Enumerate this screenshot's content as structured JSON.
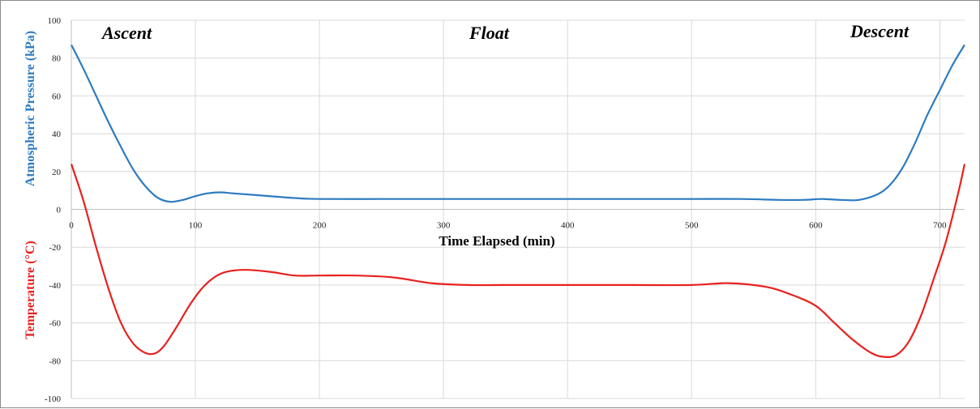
{
  "chart_data": {
    "type": "line",
    "xlabel": "Time Elapsed (min)",
    "ylabel_pressure": "Atmospheric Pressure (kPa)",
    "ylabel_temperature": "Temperature (°C)",
    "xlim": [
      0,
      720
    ],
    "ylim": [
      -100,
      100
    ],
    "x_ticks": [
      0,
      100,
      200,
      300,
      400,
      500,
      600,
      700
    ],
    "y_ticks": [
      -100,
      -80,
      -60,
      -40,
      -20,
      0,
      20,
      40,
      60,
      80,
      100
    ],
    "grid": true,
    "annotations": [
      "Ascent",
      "Float",
      "Descent"
    ],
    "colors": {
      "pressure": "#2e7bc0",
      "temperature": "#e8211f"
    },
    "series": [
      {
        "key": "pressure",
        "x": [
          0,
          10,
          20,
          30,
          40,
          50,
          60,
          70,
          80,
          90,
          100,
          110,
          120,
          130,
          150,
          180,
          200,
          250,
          300,
          350,
          400,
          450,
          500,
          540,
          570,
          590,
          605,
          620,
          635,
          650,
          660,
          670,
          680,
          690,
          700,
          710,
          720
        ],
        "values": [
          87,
          74,
          60,
          46,
          33,
          21,
          12,
          6,
          4,
          5,
          7,
          8.5,
          9,
          8.5,
          7.5,
          6,
          5.5,
          5.5,
          5.5,
          5.5,
          5.5,
          5.5,
          5.5,
          5.5,
          5,
          5,
          5.5,
          5,
          5,
          8,
          13,
          22,
          35,
          50,
          63,
          76,
          87
        ]
      },
      {
        "key": "temperature",
        "x": [
          0,
          10,
          20,
          30,
          40,
          50,
          60,
          68,
          75,
          85,
          95,
          105,
          115,
          125,
          140,
          160,
          180,
          200,
          230,
          260,
          290,
          320,
          350,
          400,
          450,
          500,
          530,
          560,
          580,
          600,
          615,
          630,
          645,
          655,
          665,
          675,
          685,
          695,
          705,
          715,
          720
        ],
        "values": [
          24,
          4,
          -20,
          -42,
          -60,
          -71,
          -76,
          -76,
          -72,
          -62,
          -51,
          -42,
          -36,
          -33,
          -32,
          -33,
          -35,
          -35,
          -35,
          -36,
          -39,
          -40,
          -40,
          -40,
          -40,
          -40,
          -39,
          -41,
          -45,
          -51,
          -60,
          -69,
          -76,
          -78,
          -77,
          -70,
          -56,
          -37,
          -17,
          9,
          24
        ]
      }
    ]
  }
}
